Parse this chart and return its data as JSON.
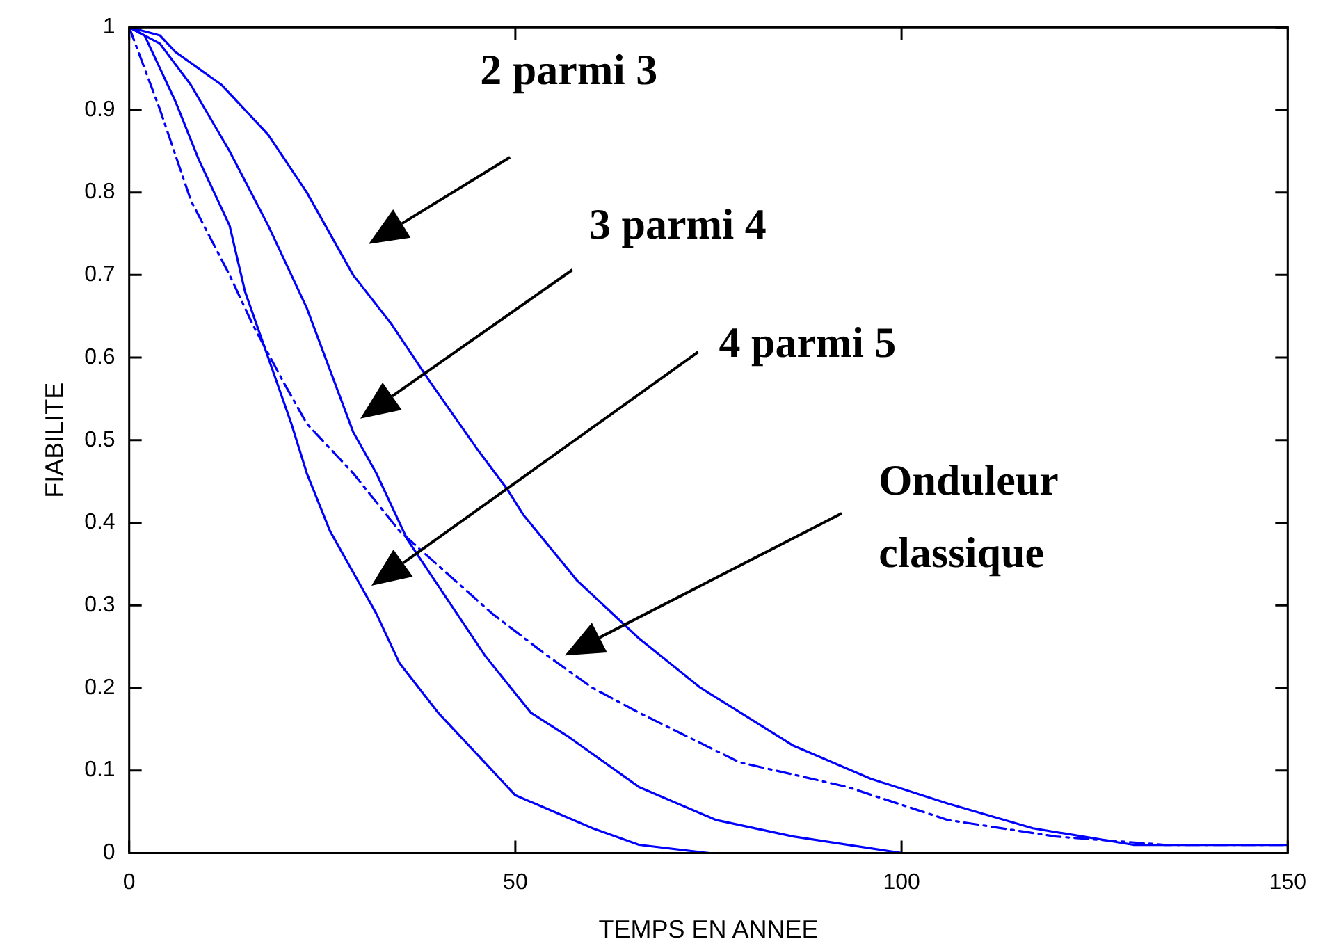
{
  "chart_data": {
    "type": "line",
    "xlabel": "TEMPS EN ANNEE",
    "ylabel": "FIABILITE",
    "xlim": [
      0,
      150
    ],
    "xticks": [
      0,
      50,
      100,
      150
    ],
    "ylim": [
      0,
      1
    ],
    "yticks": [
      0,
      0.1,
      0.2,
      0.3,
      0.4,
      0.5,
      0.6,
      0.7,
      0.8,
      0.9,
      1
    ],
    "grid": false,
    "annotations": [
      "2 parmi 3",
      "3 parmi 4",
      "4 parmi 5",
      "Onduleur classique"
    ],
    "series": [
      {
        "color": "#0000ff",
        "line_style": "solid",
        "x": [
          0,
          4,
          6,
          12,
          18,
          23,
          29,
          34,
          39,
          45,
          49,
          51,
          58,
          66,
          74,
          86,
          96,
          106,
          117,
          130,
          140,
          150
        ],
        "values": [
          1,
          0.99,
          0.97,
          0.93,
          0.87,
          0.8,
          0.7,
          0.64,
          0.57,
          0.49,
          0.44,
          0.41,
          0.33,
          0.26,
          0.2,
          0.13,
          0.09,
          0.06,
          0.03,
          0.01,
          0.01,
          0.01
        ]
      },
      {
        "color": "#0000ff",
        "line_style": "solid",
        "x": [
          0,
          4,
          8,
          13,
          18,
          23,
          29,
          32,
          36,
          41,
          46,
          52,
          57,
          66,
          76,
          86,
          100
        ],
        "values": [
          1,
          0.98,
          0.93,
          0.85,
          0.76,
          0.66,
          0.51,
          0.46,
          0.38,
          0.31,
          0.24,
          0.17,
          0.14,
          0.08,
          0.04,
          0.02,
          0
        ]
      },
      {
        "color": "#0000ff",
        "line_style": "solid",
        "x": [
          0,
          2,
          6,
          9,
          13,
          15,
          18,
          21,
          23,
          26,
          29,
          32,
          35,
          40,
          45,
          50,
          55,
          60,
          66,
          75
        ],
        "values": [
          1,
          0.99,
          0.91,
          0.84,
          0.76,
          0.68,
          0.6,
          0.52,
          0.46,
          0.39,
          0.34,
          0.29,
          0.23,
          0.17,
          0.12,
          0.07,
          0.05,
          0.03,
          0.01,
          0
        ]
      },
      {
        "color": "#0000ff",
        "line_style": "dashdot",
        "x": [
          0,
          4,
          8,
          13,
          16,
          20,
          23,
          29,
          35,
          41,
          47,
          54,
          60,
          66,
          79,
          93,
          106,
          120,
          134,
          150
        ],
        "values": [
          1,
          0.9,
          0.79,
          0.7,
          0.64,
          0.57,
          0.52,
          0.46,
          0.39,
          0.34,
          0.29,
          0.24,
          0.2,
          0.17,
          0.11,
          0.08,
          0.04,
          0.02,
          0.01,
          0.01
        ]
      }
    ]
  }
}
